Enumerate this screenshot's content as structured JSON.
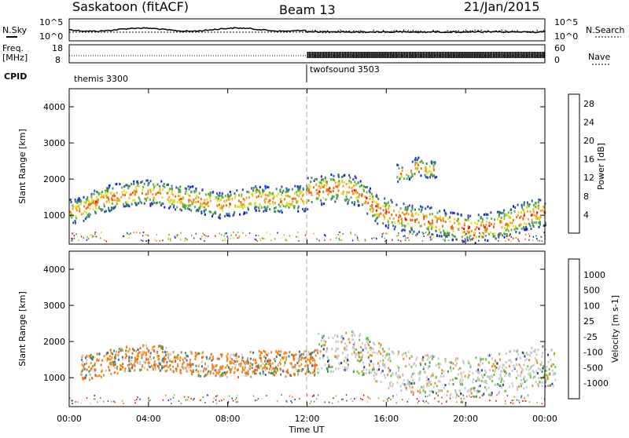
{
  "header": {
    "station": "Saskatoon (fitACF)",
    "beam": "Beam 13",
    "date": "21/Jan/2015"
  },
  "noise_panel": {
    "left_label": "N.Sky",
    "left_ticks": [
      "10^5",
      "10^0"
    ],
    "right_label": "N.Search",
    "right_ticks": [
      "10^5",
      "10^0"
    ]
  },
  "freq_panel": {
    "left_label_1": "Freq.",
    "left_label_2": "[MHz]",
    "left_ticks": [
      "18",
      "8"
    ],
    "right_label": "Nave",
    "right_ticks": [
      "60",
      "0"
    ]
  },
  "cpid": {
    "label": "CPID",
    "programs": [
      {
        "name": "themis 3300",
        "start_hour": 0,
        "end_hour": 12
      },
      {
        "name": "twofsound 3503",
        "start_hour": 12,
        "end_hour": 24
      }
    ]
  },
  "colors": {
    "power_scale": [
      "#1515e6",
      "#2b4fa8",
      "#3d8a5a",
      "#5fb043",
      "#e0e020",
      "#f0a020",
      "#f06a10",
      "#e01010"
    ],
    "velocity_scale": [
      "#1e3ea8",
      "#3d6e9a",
      "#3a9a56",
      "#6cc43c",
      "#c8c8c8",
      "#f08a18",
      "#f06218",
      "#e83010",
      "#e01010"
    ]
  },
  "chart_data": [
    {
      "type": "heatmap",
      "title": "Power",
      "ylabel": "Slant Range [km]",
      "xlabel": "",
      "y_ticks": [
        "1000",
        "2000",
        "3000",
        "4000"
      ],
      "ylim": [
        200,
        4500
      ],
      "xlim": [
        0,
        24
      ],
      "colorbar_label": "Power [dB]",
      "colorbar_ticks": [
        "4",
        "8",
        "12",
        "16",
        "20",
        "24",
        "28"
      ],
      "colorbar_range": [
        0,
        30
      ],
      "bands": [
        {
          "x": [
            0.5,
            1.5,
            2.5,
            3.5,
            4.5,
            5.5,
            6.5,
            7.5,
            8.5,
            9.5,
            10.5,
            11.5
          ],
          "center": [
            1150,
            1450,
            1550,
            1650,
            1650,
            1500,
            1450,
            1300,
            1400,
            1500,
            1450,
            1500
          ],
          "width": 450,
          "power": 22
        },
        {
          "x": [
            12.5,
            13.5,
            14.5,
            15.5,
            16.5,
            17.5,
            18.5,
            19.5,
            20.5,
            21.5,
            22.5,
            23.5
          ],
          "center": [
            1700,
            1800,
            1700,
            1200,
            1000,
            900,
            850,
            700,
            650,
            750,
            900,
            1100
          ],
          "width": 500,
          "power": 24
        },
        {
          "x": [
            17.0,
            17.5,
            18.0
          ],
          "center": [
            2200,
            2400,
            2300
          ],
          "width": 300,
          "power": 22
        }
      ]
    },
    {
      "type": "heatmap",
      "title": "Velocity",
      "ylabel": "Slant Range [km]",
      "xlabel": "Time UT",
      "x_ticks": [
        "00:00",
        "04:00",
        "08:00",
        "12:00",
        "16:00",
        "20:00",
        "00:00"
      ],
      "y_ticks": [
        "1000",
        "2000",
        "3000",
        "4000"
      ],
      "ylim": [
        200,
        4500
      ],
      "xlim": [
        0,
        24
      ],
      "colorbar_label": "Velocity [m s-1]",
      "colorbar_ticks": [
        "1000",
        "500",
        "100",
        "25",
        "-25",
        "-100",
        "-500",
        "-1000"
      ],
      "bands": [
        {
          "x": [
            1,
            2,
            3,
            4,
            5,
            6,
            7,
            8,
            9,
            10,
            11,
            12
          ],
          "center": [
            1300,
            1450,
            1550,
            1600,
            1550,
            1450,
            1400,
            1350,
            1400,
            1450,
            1400,
            1450
          ],
          "width": 500,
          "velocity": -150
        },
        {
          "x": [
            13,
            14,
            15,
            16,
            17,
            18,
            19,
            20,
            21,
            22,
            23,
            24
          ],
          "center": [
            1700,
            1800,
            1600,
            1300,
            1200,
            1100,
            1050,
            1000,
            1100,
            1200,
            1300,
            1350
          ],
          "width": 800,
          "velocity": 0
        }
      ]
    }
  ]
}
